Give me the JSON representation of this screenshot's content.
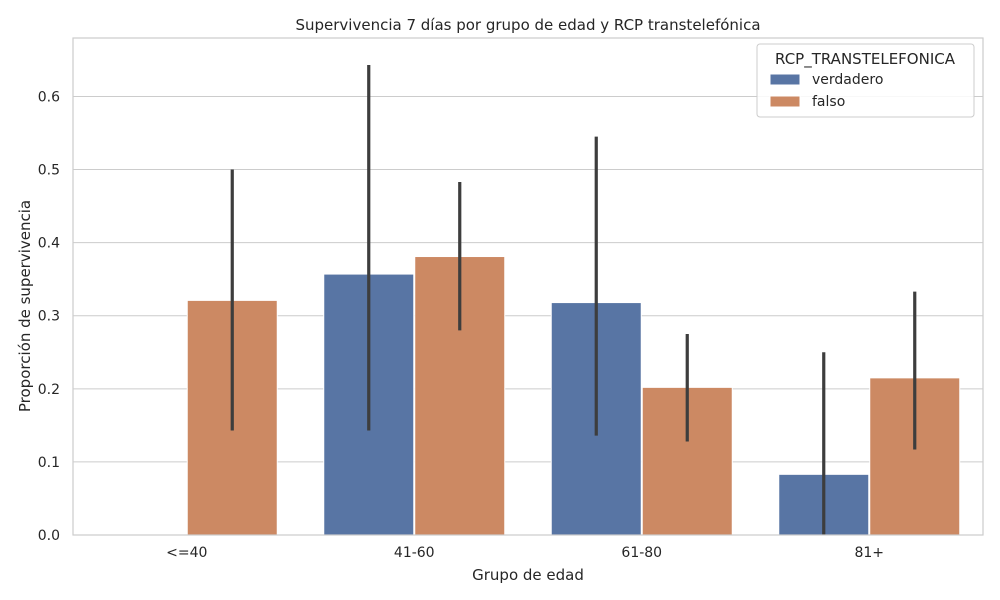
{
  "chart_data": {
    "type": "bar",
    "title": "Supervivencia 7 días por grupo de edad y RCP transtelefónica",
    "xlabel": "Grupo de edad",
    "ylabel": "Proporción de supervivencia",
    "categories": [
      "<=40",
      "41-60",
      "61-80",
      "81+"
    ],
    "ylim": [
      0,
      0.68
    ],
    "yticks": [
      "0.0",
      "0.1",
      "0.2",
      "0.3",
      "0.4",
      "0.5",
      "0.6"
    ],
    "grid": true,
    "legend": {
      "title": "RCP_TRANSTELEFONICA",
      "position": "top-right"
    },
    "series": [
      {
        "name": "verdadero",
        "color": "#5875a4",
        "values": [
          null,
          0.357,
          0.318,
          0.083
        ],
        "ci_low": [
          null,
          0.143,
          0.136,
          0.0
        ],
        "ci_high": [
          null,
          0.643,
          0.545,
          0.25
        ]
      },
      {
        "name": "falso",
        "color": "#cc8963",
        "values": [
          0.321,
          0.381,
          0.202,
          0.215
        ],
        "ci_low": [
          0.143,
          0.28,
          0.128,
          0.117
        ],
        "ci_high": [
          0.5,
          0.483,
          0.275,
          0.333
        ]
      }
    ]
  }
}
